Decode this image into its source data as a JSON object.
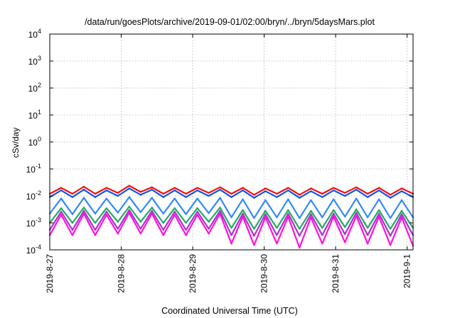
{
  "chart_data": {
    "type": "line",
    "title": "/data/run/goesPlots/archive/2019-09-01/02:00/bryn/../bryn/5daysMars.plot",
    "xlabel": "Coordinated Universal Time (UTC)",
    "ylabel": "cSv/day",
    "yscale": "log",
    "ylim": [
      0.0001,
      10000
    ],
    "y_ticks": [
      {
        "value": 10000,
        "base": "10",
        "exp": "4"
      },
      {
        "value": 1000,
        "base": "10",
        "exp": "3"
      },
      {
        "value": 100,
        "base": "10",
        "exp": "2"
      },
      {
        "value": 10,
        "base": "10",
        "exp": "1"
      },
      {
        "value": 1,
        "base": "10",
        "exp": "0"
      },
      {
        "value": 0.1,
        "base": "10",
        "exp": "-1"
      },
      {
        "value": 0.01,
        "base": "10",
        "exp": "-2"
      },
      {
        "value": 0.001,
        "base": "10",
        "exp": "-3"
      },
      {
        "value": 0.0001,
        "base": "10",
        "exp": "-4"
      }
    ],
    "xlim": [
      "2019-08-27T00:00",
      "2019-09-01T02:00"
    ],
    "x_ticks": [
      {
        "date": "2019-08-27T00:00",
        "label": "2019-8-27"
      },
      {
        "date": "2019-08-28T00:00",
        "label": "2019-8-28"
      },
      {
        "date": "2019-08-29T00:00",
        "label": "2019-8-29"
      },
      {
        "date": "2019-08-30T00:00",
        "label": "2019-8-30"
      },
      {
        "date": "2019-08-31T00:00",
        "label": "2019-8-31"
      },
      {
        "date": "2019-09-01T00:00",
        "label": "2019-9-1"
      }
    ],
    "grid": true,
    "legend": "none",
    "series": [
      {
        "color": "#ee1111",
        "values": [
          0.012,
          0.02,
          0.012,
          0.022,
          0.012,
          0.02,
          0.013,
          0.024,
          0.014,
          0.021,
          0.012,
          0.02,
          0.012,
          0.02,
          0.013,
          0.021,
          0.012,
          0.02,
          0.011,
          0.019,
          0.012,
          0.02,
          0.011,
          0.019,
          0.012,
          0.02,
          0.013,
          0.021,
          0.012,
          0.02,
          0.011,
          0.019,
          0.012
        ]
      },
      {
        "color": "#1155ee",
        "values": [
          0.009,
          0.016,
          0.009,
          0.017,
          0.009,
          0.016,
          0.01,
          0.019,
          0.011,
          0.017,
          0.009,
          0.016,
          0.009,
          0.016,
          0.01,
          0.017,
          0.009,
          0.016,
          0.0085,
          0.015,
          0.009,
          0.016,
          0.0085,
          0.015,
          0.009,
          0.016,
          0.01,
          0.017,
          0.009,
          0.016,
          0.0085,
          0.015,
          0.009
        ]
      },
      {
        "color": "#3388ff",
        "values": [
          0.0022,
          0.008,
          0.0021,
          0.0085,
          0.0022,
          0.008,
          0.0024,
          0.009,
          0.0025,
          0.0085,
          0.0022,
          0.008,
          0.0021,
          0.008,
          0.0023,
          0.0085,
          0.0016,
          0.0075,
          0.0015,
          0.007,
          0.0016,
          0.0075,
          0.0015,
          0.007,
          0.0016,
          0.0075,
          0.0017,
          0.008,
          0.0016,
          0.0075,
          0.0015,
          0.007,
          0.0016
        ]
      },
      {
        "color": "#22aa66",
        "values": [
          0.001,
          0.0035,
          0.001,
          0.0037,
          0.001,
          0.0035,
          0.0011,
          0.004,
          0.0011,
          0.0037,
          0.001,
          0.0035,
          0.001,
          0.0035,
          0.0011,
          0.0037,
          0.00065,
          0.003,
          0.0006,
          0.0028,
          0.00065,
          0.003,
          0.0006,
          0.0028,
          0.00065,
          0.003,
          0.0007,
          0.0032,
          0.00065,
          0.003,
          0.0006,
          0.0028,
          0.00065
        ]
      },
      {
        "color": "#aa33cc",
        "values": [
          0.00055,
          0.0026,
          0.00055,
          0.0028,
          0.00055,
          0.0026,
          0.0006,
          0.003,
          0.0006,
          0.0028,
          0.00055,
          0.0026,
          0.00055,
          0.0026,
          0.0006,
          0.0028,
          0.00035,
          0.0022,
          0.00033,
          0.0021,
          0.00035,
          0.0022,
          0.00033,
          0.0021,
          0.00035,
          0.0022,
          0.00038,
          0.0024,
          0.00035,
          0.0022,
          0.00033,
          0.0021,
          0.00035
        ]
      },
      {
        "color": "#ff11dd",
        "values": [
          0.00035,
          0.002,
          0.00035,
          0.0022,
          0.00035,
          0.002,
          0.0004,
          0.0024,
          0.0004,
          0.0022,
          0.00035,
          0.002,
          0.00035,
          0.002,
          0.0004,
          0.0022,
          0.00017,
          0.0017,
          0.00015,
          0.0016,
          0.00017,
          0.0017,
          0.00012,
          0.0016,
          0.00017,
          0.0017,
          0.00019,
          0.0018,
          0.00017,
          0.0017,
          0.00015,
          0.0016,
          0.00014
        ]
      }
    ]
  }
}
